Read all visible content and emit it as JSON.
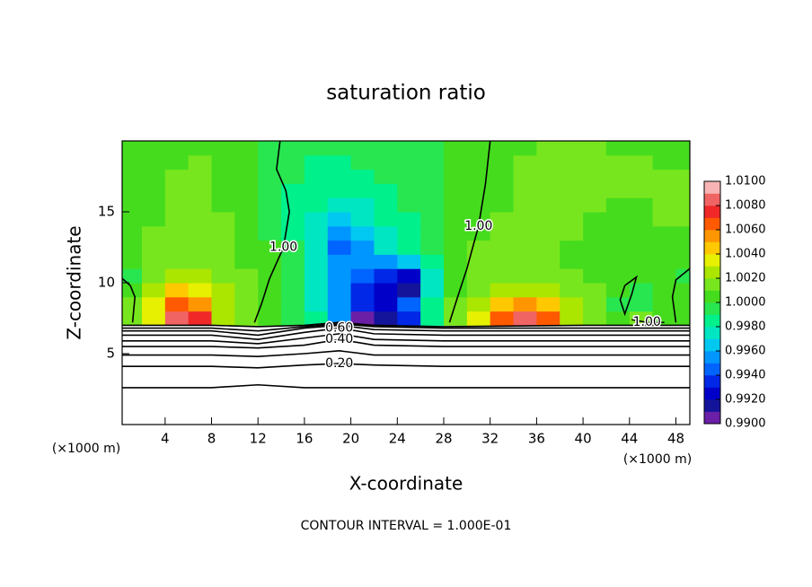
{
  "chart_data": {
    "type": "contour",
    "title": "saturation ratio",
    "x_label": "X-coordinate",
    "y_label": "Z-coordinate",
    "x_unit_labels": [
      "(×1000 m)",
      "(×1000 m)"
    ],
    "footer": "CONTOUR INTERVAL = 1.000E-01",
    "xlim": [
      0.3,
      49.2
    ],
    "ylim": [
      0,
      20
    ],
    "xticks": [
      4,
      8,
      12,
      16,
      20,
      24,
      28,
      32,
      36,
      40,
      44,
      48
    ],
    "yticks": [
      5,
      10,
      15
    ],
    "x": [
      1,
      3,
      5,
      7,
      9,
      11,
      13,
      15,
      17,
      19,
      21,
      23,
      25,
      27,
      29,
      31,
      33,
      35,
      37,
      39,
      41,
      43,
      45,
      47,
      49
    ],
    "y": [
      7.5,
      8.5,
      9.5,
      10.5,
      11.5,
      12.5,
      13.5,
      14.5,
      15.5,
      16.5,
      17.5,
      18.5,
      19.5
    ],
    "z": [
      [
        1.001,
        1.003,
        1.008,
        1.007,
        1.002,
        1.001,
        1.0,
        0.999,
        0.998,
        0.995,
        0.99,
        0.991,
        0.993,
        0.998,
        1.001,
        1.003,
        1.006,
        1.008,
        1.006,
        1.002,
        1.001,
        1.0,
        1.001,
        1.0,
        1.0
      ],
      [
        1.001,
        1.003,
        1.006,
        1.005,
        1.002,
        1.001,
        1.0,
        0.999,
        0.997,
        0.995,
        0.993,
        0.992,
        0.994,
        0.998,
        1.001,
        1.002,
        1.004,
        1.005,
        1.004,
        1.002,
        1.001,
        0.999,
        0.999,
        1.0,
        1.0
      ],
      [
        1.0,
        1.002,
        1.004,
        1.003,
        1.002,
        1.001,
        1.0,
        0.999,
        0.997,
        0.995,
        0.993,
        0.992,
        0.991,
        0.997,
        1.0,
        1.001,
        1.002,
        1.002,
        1.002,
        1.001,
        1.001,
        1.0,
        0.999,
        1.0,
        1.0
      ],
      [
        0.999,
        1.001,
        1.002,
        1.002,
        1.001,
        1.001,
        1.0,
        0.999,
        0.997,
        0.995,
        0.994,
        0.993,
        0.992,
        0.997,
        1.0,
        1.001,
        1.001,
        1.001,
        1.001,
        1.001,
        1.0,
        1.0,
        1.0,
        1.0,
        0.999
      ],
      [
        1.0,
        1.001,
        1.001,
        1.001,
        1.001,
        1.0,
        1.0,
        0.999,
        0.997,
        0.995,
        0.995,
        0.995,
        0.996,
        0.998,
        1.0,
        1.001,
        1.001,
        1.001,
        1.001,
        1.0,
        1.0,
        1.0,
        1.0,
        1.0,
        1.0
      ],
      [
        1.0,
        1.001,
        1.001,
        1.001,
        1.001,
        1.0,
        1.0,
        0.999,
        0.997,
        0.994,
        0.995,
        0.997,
        0.998,
        0.999,
        1.0,
        1.001,
        1.001,
        1.001,
        1.001,
        1.0,
        1.0,
        1.0,
        1.0,
        1.0,
        1.0
      ],
      [
        1.0,
        1.001,
        1.001,
        1.001,
        1.001,
        1.0,
        0.999,
        0.998,
        0.997,
        0.995,
        0.996,
        0.997,
        0.998,
        0.999,
        1.0,
        1.0,
        1.001,
        1.001,
        1.001,
        1.001,
        1.0,
        1.0,
        1.0,
        1.0,
        1.0
      ],
      [
        1.0,
        1.0,
        1.001,
        1.001,
        1.001,
        1.0,
        0.999,
        0.998,
        0.997,
        0.996,
        0.997,
        0.998,
        0.998,
        0.999,
        1.0,
        1.0,
        1.001,
        1.001,
        1.001,
        1.001,
        1.0,
        1.0,
        1.0,
        1.001,
        1.001
      ],
      [
        1.0,
        1.0,
        1.001,
        1.001,
        1.0,
        1.0,
        0.999,
        0.998,
        0.998,
        0.997,
        0.997,
        0.998,
        0.999,
        0.999,
        1.0,
        1.0,
        1.0,
        1.001,
        1.001,
        1.001,
        1.001,
        1.0,
        1.0,
        1.001,
        1.001
      ],
      [
        1.0,
        1.0,
        1.001,
        1.001,
        1.0,
        1.0,
        0.999,
        0.998,
        0.998,
        0.998,
        0.998,
        0.998,
        0.999,
        0.999,
        1.0,
        1.0,
        1.0,
        1.001,
        1.001,
        1.001,
        1.001,
        1.001,
        1.001,
        1.001,
        1.001
      ],
      [
        1.0,
        1.0,
        1.001,
        1.001,
        1.0,
        1.0,
        0.999,
        0.999,
        0.998,
        0.998,
        0.998,
        0.999,
        0.999,
        0.999,
        1.0,
        1.0,
        1.0,
        1.001,
        1.001,
        1.001,
        1.001,
        1.001,
        1.001,
        1.001,
        1.001
      ],
      [
        1.0,
        1.0,
        1.0,
        1.001,
        1.0,
        1.0,
        0.999,
        0.999,
        0.998,
        0.998,
        0.999,
        0.999,
        0.999,
        0.999,
        1.0,
        1.0,
        1.0,
        1.001,
        1.001,
        1.001,
        1.001,
        1.001,
        1.001,
        1.0,
        1.0
      ],
      [
        1.0,
        1.0,
        1.0,
        1.0,
        1.0,
        1.0,
        0.999,
        0.999,
        0.999,
        0.999,
        0.999,
        0.999,
        0.999,
        0.999,
        1.0,
        1.0,
        1.0,
        1.0,
        1.001,
        1.001,
        1.001,
        1.0,
        1.0,
        1.0,
        1.0
      ]
    ],
    "contours": [
      {
        "x": [
          0.3,
          8,
          12,
          16,
          19,
          22,
          28,
          40,
          49.2
        ],
        "y": [
          2.6,
          2.6,
          2.8,
          2.6,
          2.6,
          2.6,
          2.6,
          2.6,
          2.6
        ]
      },
      {
        "x": [
          0.3,
          8,
          12,
          16,
          19,
          22,
          28,
          40,
          49.2
        ],
        "y": [
          4.1,
          4.1,
          4.0,
          4.2,
          4.3,
          4.2,
          4.1,
          4.1,
          4.1
        ],
        "label": "0.20"
      },
      {
        "x": [
          0.3,
          8,
          12,
          16,
          19,
          22,
          28,
          40,
          49.2
        ],
        "y": [
          4.9,
          4.9,
          4.8,
          5.0,
          5.2,
          4.9,
          4.9,
          4.9,
          4.9
        ]
      },
      {
        "x": [
          0.3,
          8,
          12,
          16,
          19,
          22,
          28,
          40,
          49.2
        ],
        "y": [
          5.5,
          5.5,
          5.4,
          5.6,
          6.0,
          5.6,
          5.5,
          5.5,
          5.5
        ],
        "label": "0.40"
      },
      {
        "x": [
          0.3,
          8,
          12,
          16,
          19,
          22,
          28,
          40,
          49.2
        ],
        "y": [
          5.9,
          5.9,
          5.7,
          6.1,
          6.4,
          6.0,
          5.9,
          5.9,
          5.9
        ]
      },
      {
        "x": [
          0.3,
          8,
          12,
          16,
          19,
          22,
          28,
          40,
          49.2
        ],
        "y": [
          6.3,
          6.3,
          6.0,
          6.5,
          6.8,
          6.4,
          6.3,
          6.3,
          6.3
        ],
        "label": "0.60"
      },
      {
        "x": [
          0.3,
          8,
          12,
          16,
          19,
          22,
          28,
          40,
          49.2
        ],
        "y": [
          6.6,
          6.6,
          6.3,
          6.8,
          7.0,
          6.7,
          6.6,
          6.6,
          6.6
        ]
      },
      {
        "x": [
          0.3,
          8,
          12,
          16,
          19,
          22,
          28,
          40,
          49.2
        ],
        "y": [
          6.8,
          6.8,
          6.6,
          6.9,
          7.1,
          6.9,
          6.8,
          6.8,
          6.8
        ]
      },
      {
        "x": [
          0.3,
          8,
          12,
          16,
          19,
          22,
          28,
          40,
          49.2
        ],
        "y": [
          7.0,
          7.0,
          6.9,
          7.0,
          7.2,
          7.0,
          6.9,
          7.0,
          7.0
        ]
      },
      {
        "x": [
          13.9,
          13.6,
          14.4,
          14.7,
          14.2,
          13.0,
          12.3,
          11.7
        ],
        "y": [
          20,
          18,
          16.5,
          15,
          12.5,
          10.3,
          8.5,
          7.2
        ],
        "label": "1.00"
      },
      {
        "x": [
          32.0,
          31.8,
          31.6,
          31.0,
          30.0,
          29.2,
          28.5
        ],
        "y": [
          20,
          18.5,
          17,
          14,
          11,
          9,
          7.2
        ],
        "label": "1.00"
      },
      {
        "x": [
          0.3,
          1.0,
          1.4,
          1.2
        ],
        "y": [
          10.3,
          9.8,
          9,
          7.2
        ]
      },
      {
        "x": [
          49.2,
          48.0,
          47.7,
          48.0
        ],
        "y": [
          11.0,
          10.2,
          9,
          7.2
        ]
      },
      {
        "x": [
          43.6,
          44.6,
          44.2,
          43.6,
          43.2,
          43.6
        ],
        "y": [
          9.8,
          10.4,
          9.2,
          7.8,
          8.8,
          9.8
        ]
      },
      {
        "x": [
          44.2,
          45.5,
          47.0
        ],
        "y": [
          7.4,
          7.2,
          7.2
        ],
        "label": "1.00"
      }
    ],
    "colorbar": {
      "lim": [
        0.99,
        1.01
      ],
      "colors": [
        "#6a1fa6",
        "#14149a",
        "#0000c8",
        "#0028e6",
        "#0064ff",
        "#0096ff",
        "#00c8f0",
        "#00e6c3",
        "#00f08c",
        "#28e650",
        "#46dc1e",
        "#78e61e",
        "#aae600",
        "#e6f000",
        "#ffc800",
        "#ff9600",
        "#ff5a00",
        "#f02828",
        "#f06464",
        "#f8b4b4"
      ],
      "ticks": [
        {
          "value": 0.99,
          "label": "0.9900"
        },
        {
          "value": 0.992,
          "label": "0.9920"
        },
        {
          "value": 0.994,
          "label": "0.9940"
        },
        {
          "value": 0.996,
          "label": "0.9960"
        },
        {
          "value": 0.998,
          "label": "0.9980"
        },
        {
          "value": 1.0,
          "label": "1.0000"
        },
        {
          "value": 1.002,
          "label": "1.0020"
        },
        {
          "value": 1.004,
          "label": "1.0040"
        },
        {
          "value": 1.006,
          "label": "1.0060"
        },
        {
          "value": 1.008,
          "label": "1.0080"
        },
        {
          "value": 1.01,
          "label": "1.0100"
        }
      ]
    }
  }
}
